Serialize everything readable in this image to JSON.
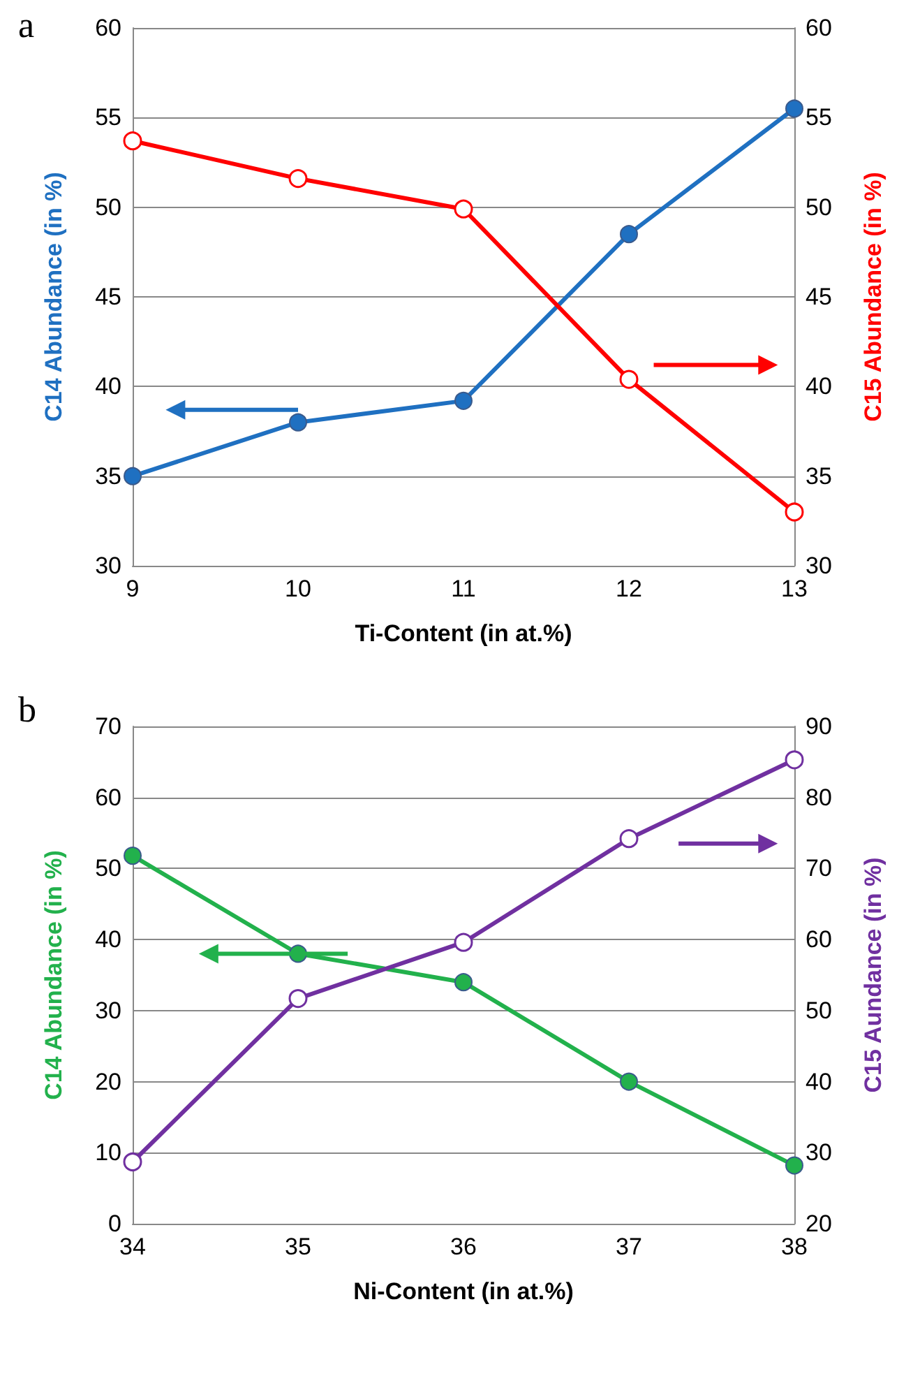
{
  "chart_data": [
    {
      "type": "line",
      "title": "a",
      "x": [
        9,
        10,
        11,
        12,
        13
      ],
      "xlim": [
        9,
        13
      ],
      "xticks": [
        9,
        10,
        11,
        12,
        13
      ],
      "ylim": [
        30,
        60
      ],
      "yticks": [
        30,
        35,
        40,
        45,
        50,
        55,
        60
      ],
      "y2lim": [
        30,
        60
      ],
      "y2ticks": [
        30,
        35,
        40,
        45,
        50,
        55,
        60
      ],
      "xlabel": "Ti-Content (in at.%)",
      "ylabel": "C14 Abundance (in %)",
      "y2label": "C15 Abundance (in %)",
      "grid": "y",
      "marker": "circle",
      "series": [
        {
          "color": "#1f70c1",
          "values": [
            35,
            38,
            39.2,
            48.5,
            55.5
          ]
        },
        {
          "color": "#ff0000",
          "axis": "y2",
          "values": [
            53.7,
            51.6,
            49.9,
            40.4,
            33
          ]
        }
      ]
    },
    {
      "type": "line",
      "title": "b",
      "x": [
        34,
        35,
        36,
        37,
        38
      ],
      "xlim": [
        34,
        38
      ],
      "xticks": [
        34,
        35,
        36,
        37,
        38
      ],
      "ylim": [
        0,
        70
      ],
      "yticks": [
        0,
        10,
        20,
        30,
        40,
        50,
        60,
        70
      ],
      "y2lim": [
        20,
        90
      ],
      "y2ticks": [
        20,
        30,
        40,
        50,
        60,
        70,
        80,
        90
      ],
      "xlabel": "Ni-Content (in at.%)",
      "ylabel": "C14 Abundance (in %)",
      "y2label": "C15 Aundance (in %)",
      "grid": "y",
      "marker": "circle",
      "series": [
        {
          "color": "#22b14c",
          "values": [
            51.8,
            38,
            34,
            20,
            8.2
          ]
        },
        {
          "color": "#7030a0",
          "axis": "y2",
          "values": [
            28.7,
            51.7,
            59.6,
            74.2,
            85.3
          ]
        }
      ]
    }
  ]
}
